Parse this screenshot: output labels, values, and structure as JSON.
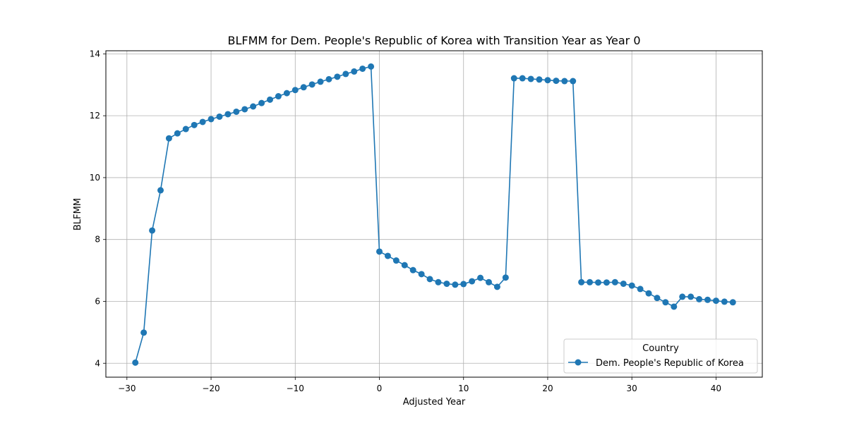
{
  "chart_data": {
    "type": "line",
    "title": "BLFMM for Dem. People's Republic of Korea with Transition Year as Year 0",
    "xlabel": "Adjusted Year",
    "ylabel": "BLFMM",
    "xlim": [
      -32.5,
      45.5
    ],
    "ylim": [
      3.55,
      14.1
    ],
    "xticks": [
      -30,
      -20,
      -10,
      0,
      10,
      20,
      30,
      40
    ],
    "xtick_labels": [
      "−30",
      "−20",
      "−10",
      "0",
      "10",
      "20",
      "30",
      "40"
    ],
    "yticks": [
      4,
      6,
      8,
      10,
      12,
      14
    ],
    "ytick_labels": [
      "4",
      "6",
      "8",
      "10",
      "12",
      "14"
    ],
    "grid": true,
    "legend": {
      "title": "Country",
      "placement": "lower-right"
    },
    "series": [
      {
        "name": "Dem. People's Republic of Korea",
        "color": "#1f77b4",
        "marker": "circle",
        "x": [
          -29,
          -28,
          -27,
          -26,
          -25,
          -24,
          -23,
          -22,
          -21,
          -20,
          -19,
          -18,
          -17,
          -16,
          -15,
          -14,
          -13,
          -12,
          -11,
          -10,
          -9,
          -8,
          -7,
          -6,
          -5,
          -4,
          -3,
          -2,
          -1,
          0,
          1,
          2,
          3,
          4,
          5,
          6,
          7,
          8,
          9,
          10,
          11,
          12,
          13,
          14,
          15,
          16,
          17,
          18,
          19,
          20,
          21,
          22,
          23,
          24,
          25,
          26,
          27,
          28,
          29,
          30,
          31,
          32,
          33,
          34,
          35,
          36,
          37,
          38,
          39,
          40,
          41,
          42
        ],
        "y": [
          4.02,
          4.99,
          8.29,
          9.59,
          11.27,
          11.43,
          11.57,
          11.7,
          11.8,
          11.89,
          11.97,
          12.05,
          12.13,
          12.21,
          12.3,
          12.41,
          12.52,
          12.63,
          12.73,
          12.83,
          12.92,
          13.01,
          13.1,
          13.18,
          13.26,
          13.35,
          13.43,
          13.52,
          13.59,
          7.61,
          7.47,
          7.32,
          7.17,
          7.01,
          6.88,
          6.72,
          6.62,
          6.57,
          6.54,
          6.56,
          6.65,
          6.76,
          6.62,
          6.47,
          6.77,
          13.21,
          13.21,
          13.19,
          13.17,
          13.15,
          13.13,
          13.12,
          13.12,
          6.62,
          6.62,
          6.61,
          6.61,
          6.62,
          6.57,
          6.51,
          6.4,
          6.26,
          6.11,
          5.97,
          5.83,
          6.15,
          6.15,
          6.07,
          6.05,
          6.02,
          5.99,
          5.97
        ]
      }
    ]
  }
}
